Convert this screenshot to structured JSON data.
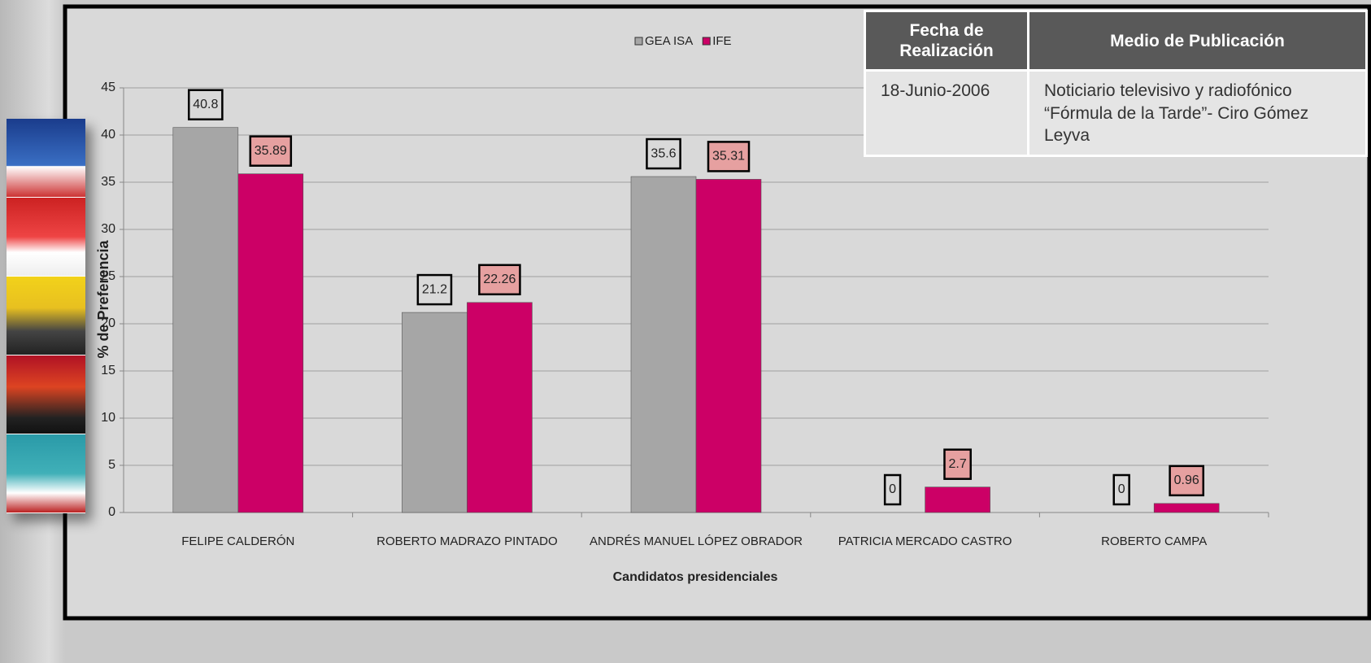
{
  "chart_data": {
    "type": "bar",
    "x_label": "Candidatos presidenciales",
    "y_label": "% de Preferencia",
    "categories": [
      "FELIPE CALDERÓN",
      "ROBERTO MADRAZO PINTADO",
      "ANDRÉS MANUEL LÓPEZ OBRADOR",
      "PATRICIA MERCADO CASTRO",
      "ROBERTO CAMPA"
    ],
    "series": [
      {
        "name": "GEA ISA",
        "color": "#a6a6a6",
        "label_color": "#d9d9d9",
        "values": [
          40.8,
          21.2,
          35.6,
          0,
          0
        ]
      },
      {
        "name": "IFE",
        "color": "#cc0066",
        "label_color": "#e6a0a0",
        "values": [
          35.89,
          22.26,
          35.31,
          2.7,
          0.96
        ]
      }
    ],
    "ylim": [
      0,
      45
    ],
    "yticks": [
      0,
      5,
      10,
      15,
      20,
      25,
      30,
      35,
      40,
      45
    ],
    "grid": true,
    "legend": "top"
  },
  "table": {
    "headers": [
      "Fecha de Realización",
      "Medio de Publicación"
    ],
    "rows": [
      [
        "18-Junio-2006",
        "Noticiario  televisivo y radiofónico “Fórmula de la Tarde”- Ciro Gómez Leyva"
      ]
    ]
  }
}
